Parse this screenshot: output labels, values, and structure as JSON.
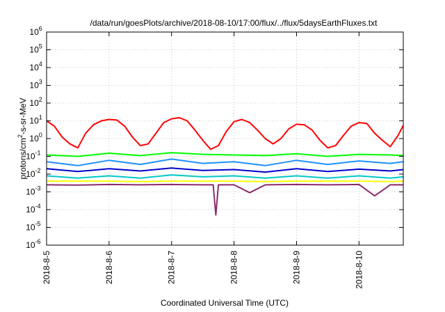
{
  "chart_data": {
    "type": "line",
    "title": "/data/run/goesPlots/archive/2018-08-10/17:00/flux/../flux/5daysEarthFluxes.txt",
    "xlabel": "Coordinated Universal Time (UTC)",
    "ylabel_main": "protons/cm",
    "ylabel_sup": "2",
    "ylabel_rest": "-s-sr-MeV",
    "y_scale": "log",
    "ylim": [
      1e-06,
      1000000.0
    ],
    "xlim": [
      "2018-08-05T00:00",
      "2018-08-10T17:00"
    ],
    "y_ticks": [
      {
        "base": "10",
        "exp": "-6",
        "value": 1e-06
      },
      {
        "base": "10",
        "exp": "-5",
        "value": 1e-05
      },
      {
        "base": "10",
        "exp": "-4",
        "value": 0.0001
      },
      {
        "base": "10",
        "exp": "-3",
        "value": 0.001
      },
      {
        "base": "10",
        "exp": "-2",
        "value": 0.01
      },
      {
        "base": "10",
        "exp": "-1",
        "value": 0.1
      },
      {
        "base": "10",
        "exp": "0",
        "value": 1
      },
      {
        "base": "10",
        "exp": "1",
        "value": 10
      },
      {
        "base": "10",
        "exp": "2",
        "value": 100
      },
      {
        "base": "10",
        "exp": "3",
        "value": 1000
      },
      {
        "base": "10",
        "exp": "4",
        "value": 10000
      },
      {
        "base": "10",
        "exp": "5",
        "value": 100000
      },
      {
        "base": "10",
        "exp": "6",
        "value": 1000000
      }
    ],
    "x_ticks": [
      {
        "label": "2018-8-5",
        "value": "2018-08-05T00:00"
      },
      {
        "label": "2018-8-6",
        "value": "2018-08-06T00:00"
      },
      {
        "label": "2018-8-7",
        "value": "2018-08-07T00:00"
      },
      {
        "label": "2018-8-8",
        "value": "2018-08-08T00:00"
      },
      {
        "label": "2018-8-9",
        "value": "2018-08-09T00:00"
      },
      {
        "label": "2018-8-10",
        "value": "2018-08-10T00:00"
      }
    ],
    "grid": true,
    "series": [
      {
        "color": "#ff0000",
        "x": [
          "2018-08-05T00:00",
          "2018-08-05T03:00",
          "2018-08-05T06:00",
          "2018-08-05T09:00",
          "2018-08-05T12:00",
          "2018-08-05T15:00",
          "2018-08-05T18:00",
          "2018-08-05T21:00",
          "2018-08-06T00:00",
          "2018-08-06T03:00",
          "2018-08-06T06:00",
          "2018-08-06T09:00",
          "2018-08-06T12:00",
          "2018-08-06T15:00",
          "2018-08-06T18:00",
          "2018-08-06T21:00",
          "2018-08-07T00:00",
          "2018-08-07T03:00",
          "2018-08-07T06:00",
          "2018-08-07T09:00",
          "2018-08-07T12:00",
          "2018-08-07T15:00",
          "2018-08-07T18:00",
          "2018-08-07T21:00",
          "2018-08-08T00:00",
          "2018-08-08T03:00",
          "2018-08-08T06:00",
          "2018-08-08T09:00",
          "2018-08-08T12:00",
          "2018-08-08T15:00",
          "2018-08-08T18:00",
          "2018-08-08T21:00",
          "2018-08-09T00:00",
          "2018-08-09T03:00",
          "2018-08-09T06:00",
          "2018-08-09T09:00",
          "2018-08-09T12:00",
          "2018-08-09T15:00",
          "2018-08-09T18:00",
          "2018-08-09T21:00",
          "2018-08-10T00:00",
          "2018-08-10T03:00",
          "2018-08-10T06:00",
          "2018-08-10T09:00",
          "2018-08-10T12:00",
          "2018-08-10T15:00",
          "2018-08-10T17:00"
        ],
        "y": [
          10,
          5,
          1.2,
          0.5,
          0.3,
          2,
          6,
          10,
          12,
          11,
          5,
          1.2,
          0.4,
          0.5,
          2,
          8,
          13,
          15,
          10,
          3,
          0.8,
          0.25,
          0.4,
          2.5,
          9,
          12,
          8,
          3,
          1,
          0.5,
          1,
          3.5,
          6.5,
          6,
          3,
          0.8,
          0.3,
          0.4,
          1.5,
          5,
          8,
          7,
          2,
          0.8,
          0.35,
          1.5,
          5.5
        ]
      },
      {
        "color": "#00ff00",
        "x": [
          "2018-08-05T00:00",
          "2018-08-05T12:00",
          "2018-08-06T00:00",
          "2018-08-06T12:00",
          "2018-08-07T00:00",
          "2018-08-07T12:00",
          "2018-08-08T00:00",
          "2018-08-08T12:00",
          "2018-08-09T00:00",
          "2018-08-09T12:00",
          "2018-08-10T00:00",
          "2018-08-10T12:00",
          "2018-08-10T17:00"
        ],
        "y": [
          0.12,
          0.1,
          0.15,
          0.11,
          0.16,
          0.13,
          0.12,
          0.11,
          0.14,
          0.1,
          0.13,
          0.12,
          0.11
        ]
      },
      {
        "color": "#1e90ff",
        "x": [
          "2018-08-05T00:00",
          "2018-08-05T12:00",
          "2018-08-06T00:00",
          "2018-08-06T12:00",
          "2018-08-07T00:00",
          "2018-08-07T12:00",
          "2018-08-08T00:00",
          "2018-08-08T12:00",
          "2018-08-09T00:00",
          "2018-08-09T12:00",
          "2018-08-10T00:00",
          "2018-08-10T12:00",
          "2018-08-10T17:00"
        ],
        "y": [
          0.05,
          0.03,
          0.06,
          0.035,
          0.07,
          0.04,
          0.05,
          0.03,
          0.06,
          0.035,
          0.055,
          0.04,
          0.05
        ]
      },
      {
        "color": "#0000cd",
        "x": [
          "2018-08-05T00:00",
          "2018-08-05T12:00",
          "2018-08-06T00:00",
          "2018-08-06T12:00",
          "2018-08-07T00:00",
          "2018-08-07T12:00",
          "2018-08-08T00:00",
          "2018-08-08T12:00",
          "2018-08-09T00:00",
          "2018-08-09T12:00",
          "2018-08-10T00:00",
          "2018-08-10T12:00",
          "2018-08-10T17:00"
        ],
        "y": [
          0.02,
          0.014,
          0.02,
          0.015,
          0.022,
          0.016,
          0.018,
          0.013,
          0.02,
          0.014,
          0.019,
          0.015,
          0.018
        ]
      },
      {
        "color": "#00c8c8",
        "x": [
          "2018-08-05T00:00",
          "2018-08-05T12:00",
          "2018-08-06T00:00",
          "2018-08-06T12:00",
          "2018-08-07T00:00",
          "2018-08-07T12:00",
          "2018-08-08T00:00",
          "2018-08-08T12:00",
          "2018-08-09T00:00",
          "2018-08-09T12:00",
          "2018-08-10T00:00",
          "2018-08-10T12:00",
          "2018-08-10T17:00"
        ],
        "y": [
          0.008,
          0.006,
          0.008,
          0.006,
          0.009,
          0.007,
          0.008,
          0.006,
          0.008,
          0.006,
          0.008,
          0.006,
          0.007
        ]
      },
      {
        "color": "#ffff00",
        "x": [
          "2018-08-05T00:00",
          "2018-08-05T12:00",
          "2018-08-06T00:00",
          "2018-08-06T12:00",
          "2018-08-07T00:00",
          "2018-08-07T12:00",
          "2018-08-08T00:00",
          "2018-08-08T12:00",
          "2018-08-09T00:00",
          "2018-08-09T12:00",
          "2018-08-10T00:00",
          "2018-08-10T12:00",
          "2018-08-10T17:00"
        ],
        "y": [
          0.004,
          0.004,
          0.004,
          0.0038,
          0.004,
          0.004,
          0.004,
          0.0038,
          0.004,
          0.004,
          0.004,
          0.0038,
          0.004
        ]
      },
      {
        "color": "#8b2a6b",
        "x": [
          "2018-08-05T00:00",
          "2018-08-05T12:00",
          "2018-08-06T00:00",
          "2018-08-06T12:00",
          "2018-08-07T00:00",
          "2018-08-07T12:00",
          "2018-08-07T16:00",
          "2018-08-07T17:00",
          "2018-08-07T18:00",
          "2018-08-08T00:00",
          "2018-08-08T06:00",
          "2018-08-08T12:00",
          "2018-08-09T00:00",
          "2018-08-09T12:00",
          "2018-08-10T00:00",
          "2018-08-10T06:00",
          "2018-08-10T12:00",
          "2018-08-10T17:00"
        ],
        "y": [
          0.0025,
          0.0024,
          0.0026,
          0.0025,
          0.0026,
          0.0025,
          0.0025,
          5e-05,
          0.0025,
          0.0025,
          0.0009,
          0.0025,
          0.0026,
          0.0025,
          0.0026,
          0.0006,
          0.0025,
          0.0025
        ]
      }
    ]
  }
}
